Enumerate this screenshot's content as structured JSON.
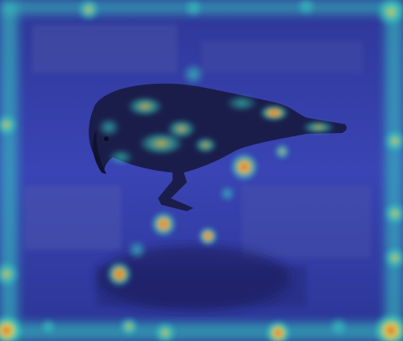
{
  "image": {
    "subject": "bird-icon",
    "colors": {
      "ground_deep": "#2a2f8c",
      "ground_mid": "#3a44b4",
      "ground_dark": "#1c2466",
      "bird_body": "#1a1d4a",
      "overlay_low": "#3a4cff",
      "overlay_mid": "#37d6c2",
      "overlay_warm": "#ffd23a",
      "overlay_hot": "#e8502a"
    }
  }
}
